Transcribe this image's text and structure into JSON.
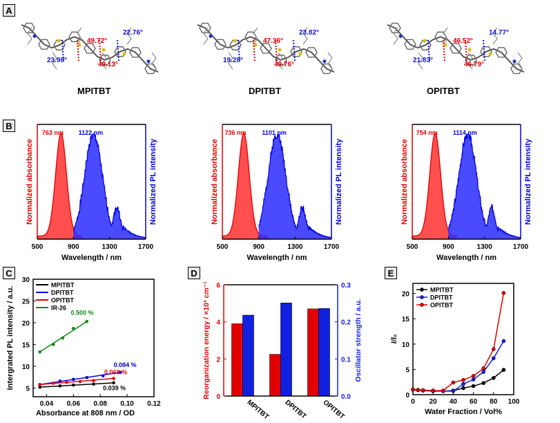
{
  "panel_labels": {
    "a": "A",
    "b": "B",
    "c": "C",
    "d": "D",
    "e": "E"
  },
  "panel_a": {
    "molecules": [
      {
        "name": "MPITBT",
        "angles": [
          {
            "text": "49.72°",
            "color": "#e00000"
          },
          {
            "text": "23.98°",
            "color": "#1010e0"
          },
          {
            "text": "49.13°",
            "color": "#e00000"
          },
          {
            "text": "22.76°",
            "color": "#1010e0"
          }
        ]
      },
      {
        "name": "DPITBT",
        "angles": [
          {
            "text": "47.36°",
            "color": "#e00000"
          },
          {
            "text": "19.28°",
            "color": "#1010e0"
          },
          {
            "text": "49.76°",
            "color": "#e00000"
          },
          {
            "text": "23.82°",
            "color": "#1010e0"
          }
        ]
      },
      {
        "name": "OPITBT",
        "angles": [
          {
            "text": "46.52°",
            "color": "#e00000"
          },
          {
            "text": "21.83°",
            "color": "#1010e0"
          },
          {
            "text": "46.79°",
            "color": "#e00000"
          },
          {
            "text": "14.77°",
            "color": "#1010e0"
          }
        ]
      }
    ]
  },
  "chart_data": [
    {
      "type": "area",
      "panel": "B-MPITBT",
      "xlabel": "Wavelength / nm",
      "xticks": [
        "500",
        "900",
        "1300",
        "1700"
      ],
      "xlim": [
        500,
        1700
      ],
      "ylabel_left": "Normalized absorbance",
      "ylabel_right": "Normalized PL intensity",
      "abs_peak_label": "763 nm",
      "pl_peak_label": "1122 nm",
      "abs_peak": 763,
      "pl_peak": 1122,
      "colors": {
        "abs": "#e00000",
        "pl": "#0000e0"
      }
    },
    {
      "type": "area",
      "panel": "B-DPITBT",
      "xlabel": "Wavelength / nm",
      "xticks": [
        "500",
        "900",
        "1300",
        "1700"
      ],
      "xlim": [
        500,
        1700
      ],
      "ylabel_left": "Normalized absorbance",
      "ylabel_right": "Normalized PL intensity",
      "abs_peak_label": "736 nm",
      "pl_peak_label": "1101 nm",
      "abs_peak": 736,
      "pl_peak": 1101,
      "colors": {
        "abs": "#e00000",
        "pl": "#0000e0"
      }
    },
    {
      "type": "area",
      "panel": "B-OPITBT",
      "xlabel": "Wavelength / nm",
      "xticks": [
        "500",
        "900",
        "1300",
        "1700"
      ],
      "xlim": [
        500,
        1700
      ],
      "ylabel_left": "Normalized absorbance",
      "ylabel_right": "Normalized PL intensity",
      "abs_peak_label": "754 nm",
      "pl_peak_label": "1114 nm",
      "abs_peak": 754,
      "pl_peak": 1114,
      "colors": {
        "abs": "#e00000",
        "pl": "#0000e0"
      }
    },
    {
      "type": "line",
      "panel": "C",
      "xlabel": "Absorbance at 808 nm / OD",
      "ylabel": "Intergrated PL intensity / a.u.",
      "xlim": [
        0.03,
        0.12
      ],
      "ylim": [
        3,
        30
      ],
      "xticks": [
        "0.04",
        "0.06",
        "0.08",
        "0.10",
        "0.12"
      ],
      "yticks": [
        "5",
        "10",
        "15",
        "20",
        "25",
        "30"
      ],
      "series": [
        {
          "name": "MPITBT",
          "color": "#000000",
          "annotation": "0.039 %",
          "x": [
            0.035,
            0.05,
            0.06,
            0.075,
            0.09
          ],
          "y": [
            5.2,
            5.5,
            5.7,
            5.9,
            6.2
          ]
        },
        {
          "name": "DPITBT",
          "color": "#0000e0",
          "annotation": "0.084 %",
          "x": [
            0.035,
            0.05,
            0.06,
            0.07,
            0.082,
            0.095
          ],
          "y": [
            5.8,
            6.6,
            7.0,
            7.4,
            7.8,
            8.6
          ]
        },
        {
          "name": "OPITBT",
          "color": "#e00000",
          "annotation": "0.068 %",
          "x": [
            0.035,
            0.045,
            0.055,
            0.065,
            0.075,
            0.09
          ],
          "y": [
            5.8,
            6.1,
            6.3,
            6.5,
            6.7,
            7.2
          ]
        },
        {
          "name": "IR-26",
          "color": "#118811",
          "annotation": "0.500 %",
          "x": [
            0.035,
            0.045,
            0.052,
            0.06,
            0.07
          ],
          "y": [
            13.3,
            15.0,
            16.5,
            18.7,
            20.3
          ]
        }
      ]
    },
    {
      "type": "bar",
      "panel": "D",
      "categories": [
        "MPITBT",
        "DPITBT",
        "OPITBT"
      ],
      "ylabel_left": "Reorganization energy / ×10³ cm⁻¹",
      "ylabel_right": "Oscillator strength / a.u.",
      "ylim_left": [
        0,
        6
      ],
      "ylim_right": [
        0,
        0.3
      ],
      "yticks_left": [
        "0",
        "2",
        "4",
        "6"
      ],
      "yticks_right": [
        "0.0",
        "0.1",
        "0.2",
        "0.3"
      ],
      "series": [
        {
          "name": "Reorganization energy",
          "axis": "left",
          "color": "#e00000",
          "values": [
            3.9,
            2.25,
            4.7
          ]
        },
        {
          "name": "Oscillator strength",
          "axis": "right",
          "color": "#1020e0",
          "values": [
            0.218,
            0.251,
            0.236
          ]
        }
      ]
    },
    {
      "type": "line",
      "panel": "E",
      "xlabel": "Water Fraction / Vol%",
      "ylabel": "I/I₀",
      "xlim": [
        0,
        100
      ],
      "ylim": [
        0,
        22
      ],
      "xticks": [
        "0",
        "20",
        "40",
        "60",
        "80",
        "100"
      ],
      "yticks": [
        "0",
        "5",
        "10",
        "15",
        "20"
      ],
      "x": [
        0,
        5,
        10,
        20,
        30,
        40,
        50,
        60,
        70,
        80,
        90
      ],
      "series": [
        {
          "name": "MPITBT",
          "color": "#000000",
          "values": [
            1.0,
            0.9,
            0.8,
            0.7,
            0.7,
            0.8,
            1.3,
            1.7,
            2.3,
            3.3,
            4.9
          ]
        },
        {
          "name": "DPITBT",
          "color": "#1020e0",
          "values": [
            1.0,
            0.9,
            0.8,
            0.8,
            0.7,
            0.7,
            2.1,
            3.0,
            4.5,
            7.2,
            10.6
          ]
        },
        {
          "name": "OPITBT",
          "color": "#e00000",
          "values": [
            1.0,
            0.95,
            0.9,
            0.8,
            0.8,
            2.4,
            2.9,
            3.7,
            5.2,
            9.0,
            20.1
          ]
        }
      ]
    }
  ]
}
